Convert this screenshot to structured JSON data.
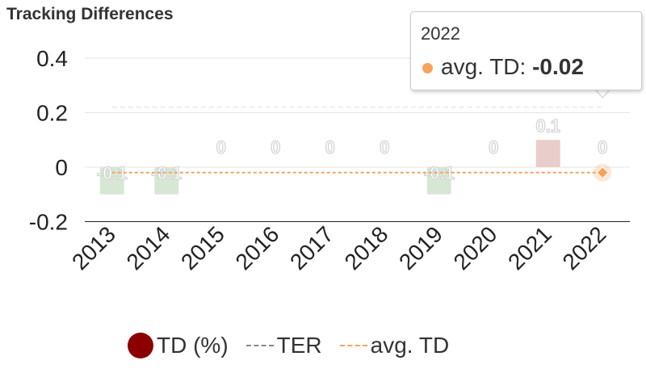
{
  "chart_data": {
    "type": "bar",
    "title": "Tracking Differences",
    "categories": [
      "2013",
      "2014",
      "2015",
      "2016",
      "2017",
      "2018",
      "2019",
      "2020",
      "2021",
      "2022"
    ],
    "series": [
      {
        "name": "TD (%)",
        "type": "bar",
        "values": [
          -0.1,
          -0.1,
          0,
          0,
          0,
          0,
          -0.1,
          0,
          0.1,
          0
        ],
        "data_labels": [
          "-0.1",
          "-0.1",
          "0",
          "0",
          "0",
          "0",
          "-0.1",
          "0",
          "0.1",
          "0"
        ],
        "negative_color": "#d6e8d3",
        "positive_color": "#e8cdca",
        "legend_color": "#8b0000"
      },
      {
        "name": "TER",
        "type": "line",
        "dashed": true,
        "value": 0.22,
        "color": "#cccccc"
      },
      {
        "name": "avg. TD",
        "type": "line",
        "dashed": true,
        "value": -0.02,
        "color": "#f7a35c"
      }
    ],
    "yticks": [
      "0.4",
      "0.2",
      "0",
      "-0.2"
    ],
    "ylim": [
      -0.2,
      0.4
    ],
    "grid": true,
    "legend": "bottom",
    "tooltip": {
      "category": "2022",
      "series": "avg. TD",
      "label": "avg. TD: ",
      "value": "-0.02"
    }
  }
}
